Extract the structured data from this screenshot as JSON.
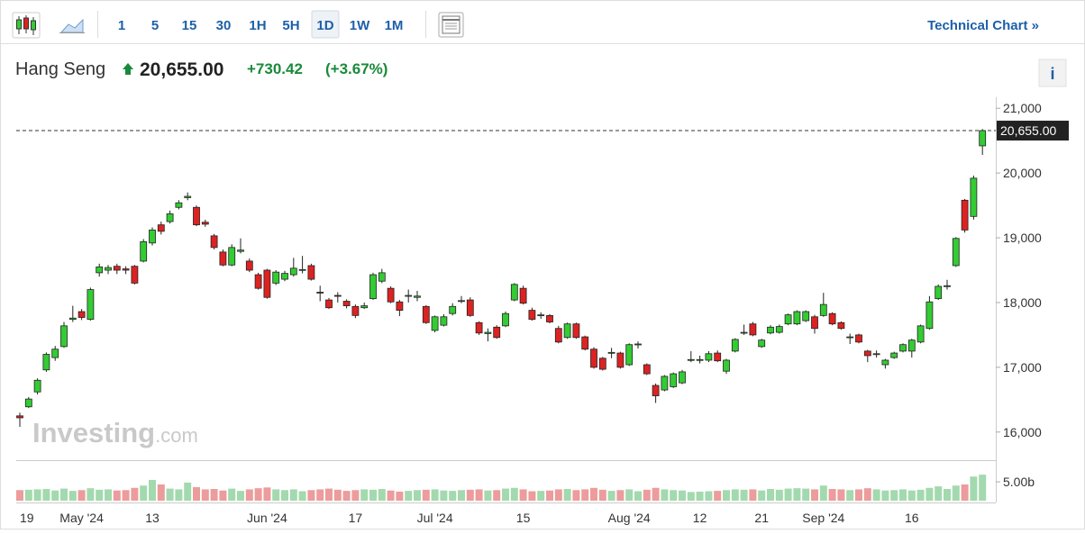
{
  "toolbar": {
    "intervals": [
      "1",
      "5",
      "15",
      "30",
      "1H",
      "5H",
      "1D",
      "1W",
      "1M"
    ],
    "active": "1D",
    "link": "Technical Chart »"
  },
  "header": {
    "name": "Hang Seng",
    "price": "20,655.00",
    "change": "+730.42",
    "change_pct": "(+3.67%)",
    "info": "i"
  },
  "watermark": {
    "brand": "Investing",
    "suffix": ".com"
  },
  "chart_data": {
    "type": "candlestick",
    "categories": [
      "19",
      null,
      null,
      null,
      null,
      null,
      null,
      "May '24",
      null,
      null,
      null,
      null,
      null,
      null,
      null,
      "13",
      null,
      null,
      null,
      null,
      null,
      null,
      null,
      null,
      null,
      null,
      null,
      null,
      "Jun '24",
      null,
      null,
      null,
      null,
      null,
      null,
      null,
      null,
      null,
      "17",
      null,
      null,
      null,
      null,
      null,
      null,
      null,
      null,
      "Jul '24",
      null,
      null,
      null,
      null,
      null,
      null,
      null,
      null,
      null,
      "15",
      null,
      null,
      null,
      null,
      null,
      null,
      null,
      null,
      null,
      null,
      null,
      "Aug '24",
      null,
      null,
      null,
      null,
      null,
      null,
      null,
      "12",
      null,
      null,
      null,
      null,
      null,
      null,
      "21",
      null,
      null,
      null,
      null,
      null,
      null,
      "Sep '24",
      null,
      null,
      null,
      null,
      null,
      null,
      null,
      null,
      null,
      "16",
      null,
      null,
      null,
      null,
      null,
      null,
      null,
      null
    ],
    "open": [
      16250,
      16390,
      16620,
      16960,
      17150,
      17320,
      17740,
      17860,
      17740,
      18460,
      18500,
      18560,
      18520,
      18560,
      18640,
      18920,
      19200,
      19250,
      19470,
      19620,
      19470,
      19240,
      19030,
      18780,
      18580,
      18790,
      18640,
      18430,
      18500,
      18300,
      18360,
      18430,
      18500,
      18570,
      18160,
      18040,
      18110,
      18020,
      17940,
      17920,
      18060,
      18330,
      18220,
      18010,
      18100,
      18080,
      17940,
      17570,
      17650,
      17830,
      18020,
      18040,
      17690,
      17520,
      17620,
      17640,
      18040,
      18220,
      17880,
      17800,
      17800,
      17600,
      17460,
      17670,
      17470,
      17280,
      17140,
      17220,
      17220,
      17040,
      17350,
      17040,
      16720,
      16650,
      16700,
      16760,
      17110,
      17110,
      17110,
      17220,
      16940,
      17250,
      17530,
      17670,
      17320,
      17530,
      17540,
      17670,
      17670,
      17720,
      17780,
      17800,
      17830,
      17690,
      17460,
      17500,
      17250,
      17200,
      17040,
      17150,
      17250,
      17250,
      17390,
      17600,
      18060,
      18250,
      18570,
      19580,
      19330,
      20420
    ],
    "high": [
      16300,
      16540,
      16830,
      17230,
      17330,
      17700,
      17950,
      17900,
      18230,
      18600,
      18580,
      18600,
      18560,
      18580,
      18980,
      19160,
      19250,
      19420,
      19580,
      19700,
      19500,
      19280,
      19060,
      18820,
      18900,
      18990,
      18680,
      18460,
      18520,
      18500,
      18490,
      18690,
      18720,
      18600,
      18260,
      18070,
      18160,
      18050,
      17970,
      18000,
      18460,
      18520,
      18250,
      18040,
      18200,
      18180,
      17960,
      17800,
      17820,
      17990,
      18100,
      18080,
      17710,
      17600,
      17650,
      17860,
      18300,
      18260,
      17920,
      17850,
      17820,
      17640,
      17690,
      17690,
      17490,
      17310,
      17160,
      17300,
      17240,
      17370,
      17400,
      17060,
      16750,
      16880,
      16920,
      16960,
      17250,
      17180,
      17250,
      17260,
      17130,
      17450,
      17660,
      17700,
      17440,
      17650,
      17660,
      17830,
      17880,
      17880,
      17810,
      18150,
      17850,
      17710,
      17520,
      17520,
      17270,
      17260,
      17130,
      17240,
      17370,
      17440,
      17660,
      18100,
      18280,
      18350,
      19010,
      19600,
      19960,
      20680
    ],
    "low": [
      16080,
      16370,
      16580,
      16930,
      17100,
      17300,
      17700,
      17730,
      17720,
      18400,
      18440,
      18440,
      18440,
      18280,
      18620,
      18880,
      19050,
      19220,
      19440,
      19580,
      19180,
      19170,
      18820,
      18560,
      18560,
      18760,
      18470,
      18200,
      18060,
      18270,
      18330,
      18400,
      18450,
      18340,
      18020,
      17900,
      18000,
      17910,
      17760,
      17900,
      18040,
      18300,
      17990,
      17790,
      18000,
      18020,
      17670,
      17540,
      17630,
      17800,
      17990,
      17780,
      17500,
      17400,
      17440,
      17620,
      18020,
      17970,
      17720,
      17750,
      17680,
      17370,
      17440,
      17440,
      17260,
      16980,
      16950,
      17140,
      16980,
      17020,
      17290,
      16880,
      16450,
      16630,
      16680,
      16740,
      17080,
      17060,
      17080,
      17080,
      16900,
      17230,
      17500,
      17480,
      17300,
      17510,
      17520,
      17650,
      17650,
      17700,
      17520,
      17780,
      17650,
      17580,
      17360,
      17370,
      17080,
      17150,
      16980,
      17130,
      17230,
      17150,
      17370,
      17580,
      18040,
      18200,
      18550,
      19080,
      19280,
      20280
    ],
    "close": [
      16220,
      16510,
      16800,
      17200,
      17280,
      17640,
      17760,
      17770,
      18200,
      18550,
      18540,
      18500,
      18500,
      18300,
      18940,
      19120,
      19100,
      19370,
      19540,
      19640,
      19200,
      19210,
      18850,
      18580,
      18850,
      18810,
      18500,
      18220,
      18080,
      18470,
      18450,
      18530,
      18510,
      18360,
      18150,
      17920,
      18100,
      17950,
      17800,
      17950,
      18430,
      18460,
      18010,
      17880,
      18110,
      18100,
      17690,
      17780,
      17780,
      17940,
      18030,
      17800,
      17530,
      17540,
      17460,
      17830,
      18280,
      17990,
      17740,
      17810,
      17700,
      17390,
      17670,
      17460,
      17280,
      17000,
      16970,
      17230,
      17000,
      17350,
      17360,
      16900,
      16560,
      16860,
      16900,
      16930,
      17120,
      17120,
      17210,
      17100,
      17110,
      17430,
      17540,
      17500,
      17420,
      17620,
      17630,
      17810,
      17860,
      17860,
      17600,
      17970,
      17670,
      17600,
      17470,
      17390,
      17180,
      17210,
      17110,
      17220,
      17350,
      17420,
      17640,
      18010,
      18250,
      18260,
      18990,
      19120,
      19920,
      20655
    ],
    "volume": [
      2.8,
      2.9,
      3.0,
      3.1,
      2.7,
      3.2,
      2.6,
      2.8,
      3.3,
      2.9,
      3.0,
      2.7,
      2.8,
      3.4,
      4.0,
      5.5,
      4.3,
      3.2,
      3.0,
      4.8,
      3.6,
      3.0,
      3.1,
      2.7,
      3.2,
      2.6,
      3.0,
      3.3,
      3.5,
      3.0,
      2.8,
      3.0,
      2.5,
      2.8,
      3.0,
      3.2,
      2.9,
      2.6,
      2.8,
      3.0,
      2.9,
      3.1,
      2.7,
      2.4,
      2.6,
      2.8,
      2.9,
      3.0,
      2.7,
      2.6,
      2.8,
      2.9,
      3.0,
      2.7,
      2.8,
      3.2,
      3.4,
      3.0,
      2.5,
      2.6,
      2.7,
      3.0,
      3.1,
      2.8,
      3.0,
      3.4,
      2.9,
      2.6,
      2.8,
      3.0,
      2.5,
      2.9,
      3.4,
      3.0,
      2.8,
      2.7,
      2.3,
      2.4,
      2.5,
      2.6,
      2.8,
      3.0,
      2.9,
      3.0,
      2.7,
      3.1,
      2.9,
      3.2,
      3.3,
      3.2,
      3.0,
      4.0,
      3.1,
      3.0,
      2.8,
      3.0,
      3.3,
      3.0,
      2.7,
      2.8,
      3.0,
      2.7,
      2.9,
      3.4,
      3.8,
      3.1,
      4.0,
      4.3,
      6.4,
      6.9
    ],
    "up_color": "#33cc33",
    "down_color": "#dd2222",
    "volume_up_color": "#a3d9ae",
    "volume_down_color": "#ec9c9c",
    "ylim": [
      15580,
      21170
    ],
    "yticks": [
      {
        "value": 16000,
        "label": "16,000"
      },
      {
        "value": 17000,
        "label": "17,000"
      },
      {
        "value": 18000,
        "label": "18,000"
      },
      {
        "value": 19000,
        "label": "19,000"
      },
      {
        "value": 20000,
        "label": "20,000"
      },
      {
        "value": 21000,
        "label": "21,000"
      }
    ],
    "y2lim": [
      0,
      10.5
    ],
    "y2ticks": [
      {
        "value": 5,
        "label": "5.00b"
      }
    ],
    "price_label": {
      "value": 20655,
      "label": "20,655.00"
    },
    "grid": false
  }
}
